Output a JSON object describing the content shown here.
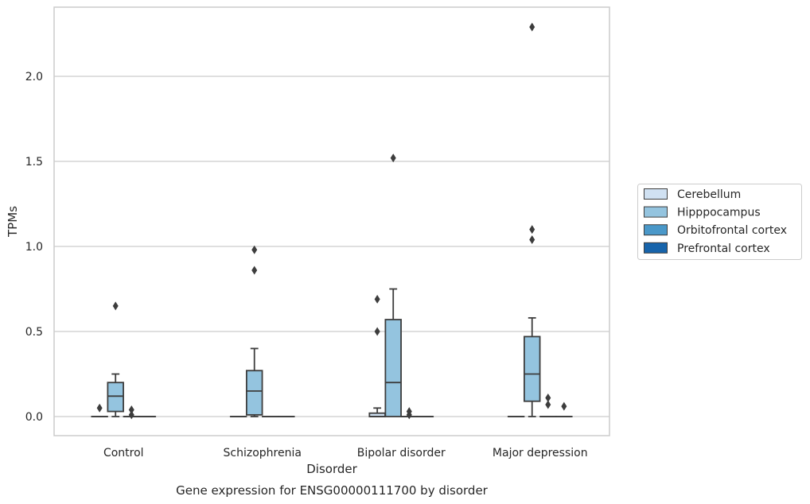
{
  "chart_data": {
    "type": "boxplot",
    "xlabel": "Disorder",
    "ylabel": "TPMs",
    "caption": "Gene expression for ENSG00000111700 by disorder",
    "categories": [
      "Control",
      "Schizophrenia",
      "Bipolar disorder",
      "Major depression"
    ],
    "y_ticks": [
      0.0,
      0.5,
      1.0,
      1.5,
      2.0
    ],
    "y_tick_labels": [
      "0.0",
      "0.5",
      "1.0",
      "1.5",
      "2.0"
    ],
    "ylim": [
      -0.11,
      2.41
    ],
    "grid": "horizontal",
    "legend_position": "right",
    "series": [
      {
        "name": "Cerebellum",
        "color": "#d0e1f2",
        "boxes": [
          {
            "q1": 0,
            "median": 0,
            "q3": 0,
            "whisker_low": 0,
            "whisker_high": 0,
            "outliers": [
              0.05
            ]
          },
          {
            "q1": 0,
            "median": 0,
            "q3": 0,
            "whisker_low": 0,
            "whisker_high": 0,
            "outliers": []
          },
          {
            "q1": 0,
            "median": 0,
            "q3": 0.02,
            "whisker_low": 0,
            "whisker_high": 0.05,
            "outliers": [
              0.69,
              0.5
            ]
          },
          {
            "q1": 0,
            "median": 0,
            "q3": 0,
            "whisker_low": 0,
            "whisker_high": 0,
            "outliers": []
          }
        ]
      },
      {
        "name": "Hipppocampus",
        "color": "#94c4df",
        "boxes": [
          {
            "q1": 0.03,
            "median": 0.12,
            "q3": 0.2,
            "whisker_low": 0,
            "whisker_high": 0.25,
            "outliers": [
              0.65
            ]
          },
          {
            "q1": 0.01,
            "median": 0.15,
            "q3": 0.27,
            "whisker_low": 0,
            "whisker_high": 0.4,
            "outliers": [
              0.98,
              0.86
            ]
          },
          {
            "q1": 0,
            "median": 0.2,
            "q3": 0.57,
            "whisker_low": 0,
            "whisker_high": 0.75,
            "outliers": [
              1.52
            ]
          },
          {
            "q1": 0.09,
            "median": 0.25,
            "q3": 0.47,
            "whisker_low": 0,
            "whisker_high": 0.58,
            "outliers": [
              2.29,
              1.1,
              1.04
            ]
          }
        ]
      },
      {
        "name": "Orbitofrontal cortex",
        "color": "#4a98c9",
        "boxes": [
          {
            "q1": 0,
            "median": 0,
            "q3": 0,
            "whisker_low": 0,
            "whisker_high": 0,
            "outliers": [
              0.04,
              0.01
            ]
          },
          {
            "q1": 0,
            "median": 0,
            "q3": 0,
            "whisker_low": 0,
            "whisker_high": 0,
            "outliers": []
          },
          {
            "q1": 0,
            "median": 0,
            "q3": 0,
            "whisker_low": 0,
            "whisker_high": 0,
            "outliers": [
              0.03,
              0.01
            ]
          },
          {
            "q1": 0,
            "median": 0,
            "q3": 0,
            "whisker_low": 0,
            "whisker_high": 0,
            "outliers": [
              0.11,
              0.07
            ]
          }
        ]
      },
      {
        "name": "Prefrontal cortex",
        "color": "#1764ab",
        "boxes": [
          {
            "q1": 0,
            "median": 0,
            "q3": 0,
            "whisker_low": 0,
            "whisker_high": 0,
            "outliers": []
          },
          {
            "q1": 0,
            "median": 0,
            "q3": 0,
            "whisker_low": 0,
            "whisker_high": 0,
            "outliers": []
          },
          {
            "q1": 0,
            "median": 0,
            "q3": 0,
            "whisker_low": 0,
            "whisker_high": 0,
            "outliers": []
          },
          {
            "q1": 0,
            "median": 0,
            "q3": 0,
            "whisker_low": 0,
            "whisker_high": 0,
            "outliers": [
              0.06
            ]
          }
        ]
      }
    ]
  }
}
